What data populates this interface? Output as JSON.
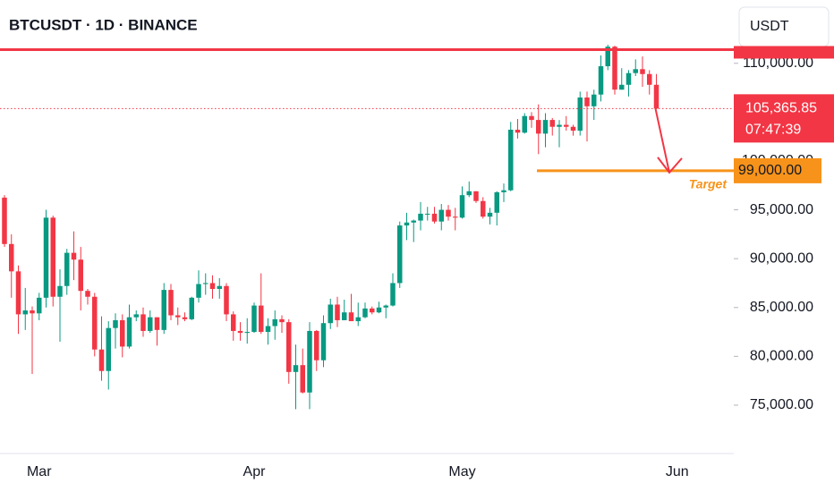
{
  "chart_data": {
    "type": "candlestick",
    "title": "BTCUSDT · 1D · BINANCE",
    "currency": "USDT",
    "categories": [
      null,
      null,
      null,
      null,
      null,
      "Mar",
      null,
      null,
      null,
      null,
      null,
      null,
      null,
      null,
      null,
      null,
      null,
      null,
      null,
      null,
      null,
      null,
      null,
      null,
      null,
      null,
      null,
      null,
      null,
      null,
      null,
      null,
      null,
      null,
      null,
      null,
      "Apr",
      null,
      null,
      null,
      null,
      null,
      null,
      null,
      null,
      null,
      null,
      null,
      null,
      null,
      null,
      null,
      null,
      null,
      null,
      null,
      null,
      null,
      null,
      null,
      null,
      null,
      null,
      null,
      null,
      null,
      "May",
      null,
      null,
      null,
      null,
      null,
      null,
      null,
      null,
      null,
      null,
      null,
      null,
      null,
      null,
      null,
      null,
      null,
      null,
      null,
      null,
      null,
      null,
      null,
      null,
      null,
      null,
      null,
      null,
      null,
      null,
      "Jun",
      null,
      null,
      null,
      null,
      null,
      null,
      null,
      null
    ],
    "open": [
      96250,
      91500,
      88700,
      84300,
      84700,
      84400,
      86000,
      94200,
      86100,
      87200,
      90600,
      89900,
      86700,
      86100,
      80700,
      78500,
      82900,
      83700,
      81000,
      84000,
      84300,
      82600,
      84000,
      82700,
      86800,
      84200,
      84000,
      83800,
      86000,
      87400,
      87500,
      86900,
      87200,
      84300,
      82600,
      82400,
      82500,
      85200,
      82500,
      83100,
      83800,
      83500,
      78400,
      79100,
      76300,
      82600,
      79600,
      83400,
      85300,
      83700,
      84500,
      83600,
      84000,
      84900,
      84500,
      85000,
      85200,
      87500,
      93400,
      93700,
      93900,
      94600,
      94600,
      93800,
      95000,
      94300,
      94200,
      96500,
      96900,
      95900,
      94300,
      94700,
      96800,
      97000,
      103200,
      102900,
      104600,
      104200,
      102800,
      104200,
      103500,
      103700,
      103500,
      103100,
      106500,
      105600,
      106800,
      109700,
      111700,
      107300,
      107800,
      109000,
      109400,
      108900,
      107800,
      null,
      null,
      null,
      null,
      null,
      null,
      null,
      null,
      null,
      null,
      null
    ],
    "high": [
      96500,
      92500,
      89300,
      87000,
      85100,
      86500,
      95000,
      94400,
      88900,
      91000,
      92800,
      91200,
      86900,
      86500,
      84100,
      83600,
      84400,
      84300,
      85300,
      84700,
      85000,
      84700,
      84000,
      87500,
      87400,
      85000,
      84500,
      86100,
      88800,
      88500,
      88300,
      88000,
      87500,
      84600,
      83500,
      83900,
      85500,
      88500,
      83900,
      84700,
      84200,
      83800,
      81200,
      80800,
      83500,
      82700,
      84200,
      85900,
      86100,
      85800,
      86400,
      85500,
      85500,
      85100,
      85600,
      85300,
      88500,
      93800,
      94700,
      94000,
      95800,
      95300,
      95300,
      95600,
      95500,
      95200,
      97400,
      97900,
      96900,
      96300,
      95200,
      96900,
      97700,
      104000,
      104300,
      104900,
      105000,
      105800,
      104900,
      104400,
      104200,
      104600,
      103700,
      107100,
      107100,
      107300,
      110800,
      111900,
      111800,
      109500,
      109300,
      110400,
      110700,
      109300,
      108900,
      null,
      null,
      null,
      null,
      null,
      null,
      null,
      null,
      null,
      null,
      null
    ],
    "low": [
      91200,
      86000,
      82300,
      82700,
      78200,
      83700,
      85000,
      85100,
      81500,
      86300,
      87800,
      84700,
      85300,
      80000,
      77500,
      76600,
      80800,
      79900,
      80800,
      83600,
      82000,
      82400,
      81100,
      82300,
      83700,
      83200,
      83600,
      83700,
      85500,
      86300,
      85900,
      85900,
      83600,
      81600,
      81600,
      81300,
      82400,
      82300,
      81200,
      81700,
      82400,
      77200,
      74600,
      76200,
      74600,
      78500,
      78900,
      82800,
      83000,
      83700,
      83600,
      83100,
      83900,
      84300,
      84400,
      83900,
      85100,
      87000,
      91900,
      91700,
      92900,
      93900,
      93600,
      92900,
      93900,
      92900,
      94100,
      96300,
      95700,
      94100,
      93500,
      93400,
      95800,
      96900,
      102300,
      102800,
      103400,
      100700,
      101400,
      102600,
      101400,
      103100,
      102600,
      102600,
      102000,
      104200,
      106100,
      109300,
      106800,
      107300,
      106600,
      108700,
      107600,
      106800,
      105300,
      null,
      null,
      null,
      null,
      null,
      null,
      null,
      null,
      null,
      null,
      null
    ],
    "close": [
      91500,
      88700,
      84300,
      84700,
      84400,
      86000,
      94200,
      86100,
      87200,
      90600,
      89900,
      86700,
      86100,
      80700,
      78500,
      82900,
      83700,
      81000,
      84000,
      84300,
      82600,
      84000,
      82700,
      86800,
      84200,
      84000,
      83800,
      86000,
      87400,
      87500,
      86900,
      87200,
      84300,
      82600,
      82400,
      82500,
      85200,
      82500,
      83100,
      83800,
      83500,
      78400,
      79100,
      76300,
      82600,
      79600,
      83400,
      85300,
      83700,
      84500,
      83600,
      84000,
      84900,
      84500,
      85000,
      85200,
      87500,
      93400,
      93700,
      93900,
      94600,
      94600,
      93800,
      95000,
      94300,
      94200,
      96500,
      96900,
      95900,
      94300,
      94700,
      96800,
      97000,
      103200,
      102900,
      104600,
      104200,
      102800,
      104200,
      103500,
      103700,
      103500,
      103100,
      106500,
      105600,
      106800,
      109700,
      111700,
      107300,
      107800,
      109000,
      109400,
      108900,
      107800,
      105365.85,
      null,
      null,
      null,
      null,
      null,
      null,
      null,
      null,
      null,
      null,
      null
    ],
    "up_color": "#089981",
    "down_color": "#f23645",
    "ylim": [
      70050,
      116480
    ],
    "yticks": [
      {
        "value": 75000,
        "label": "75,000.00"
      },
      {
        "value": 80000,
        "label": "80,000.00"
      },
      {
        "value": 85000,
        "label": "85,000.00"
      },
      {
        "value": 90000,
        "label": "90,000.00"
      },
      {
        "value": 95000,
        "label": "95,000.00"
      },
      {
        "value": 100000,
        "label": "100,000.00"
      },
      {
        "value": 110000,
        "label": "110,000.00"
      }
    ],
    "last_price_label": "105,365.85",
    "countdown": "07:47:39",
    "resistance": 111400,
    "target": {
      "value": 99000,
      "label": "99,000.00"
    },
    "target_text": "Target",
    "target_color": "#f7931a"
  }
}
